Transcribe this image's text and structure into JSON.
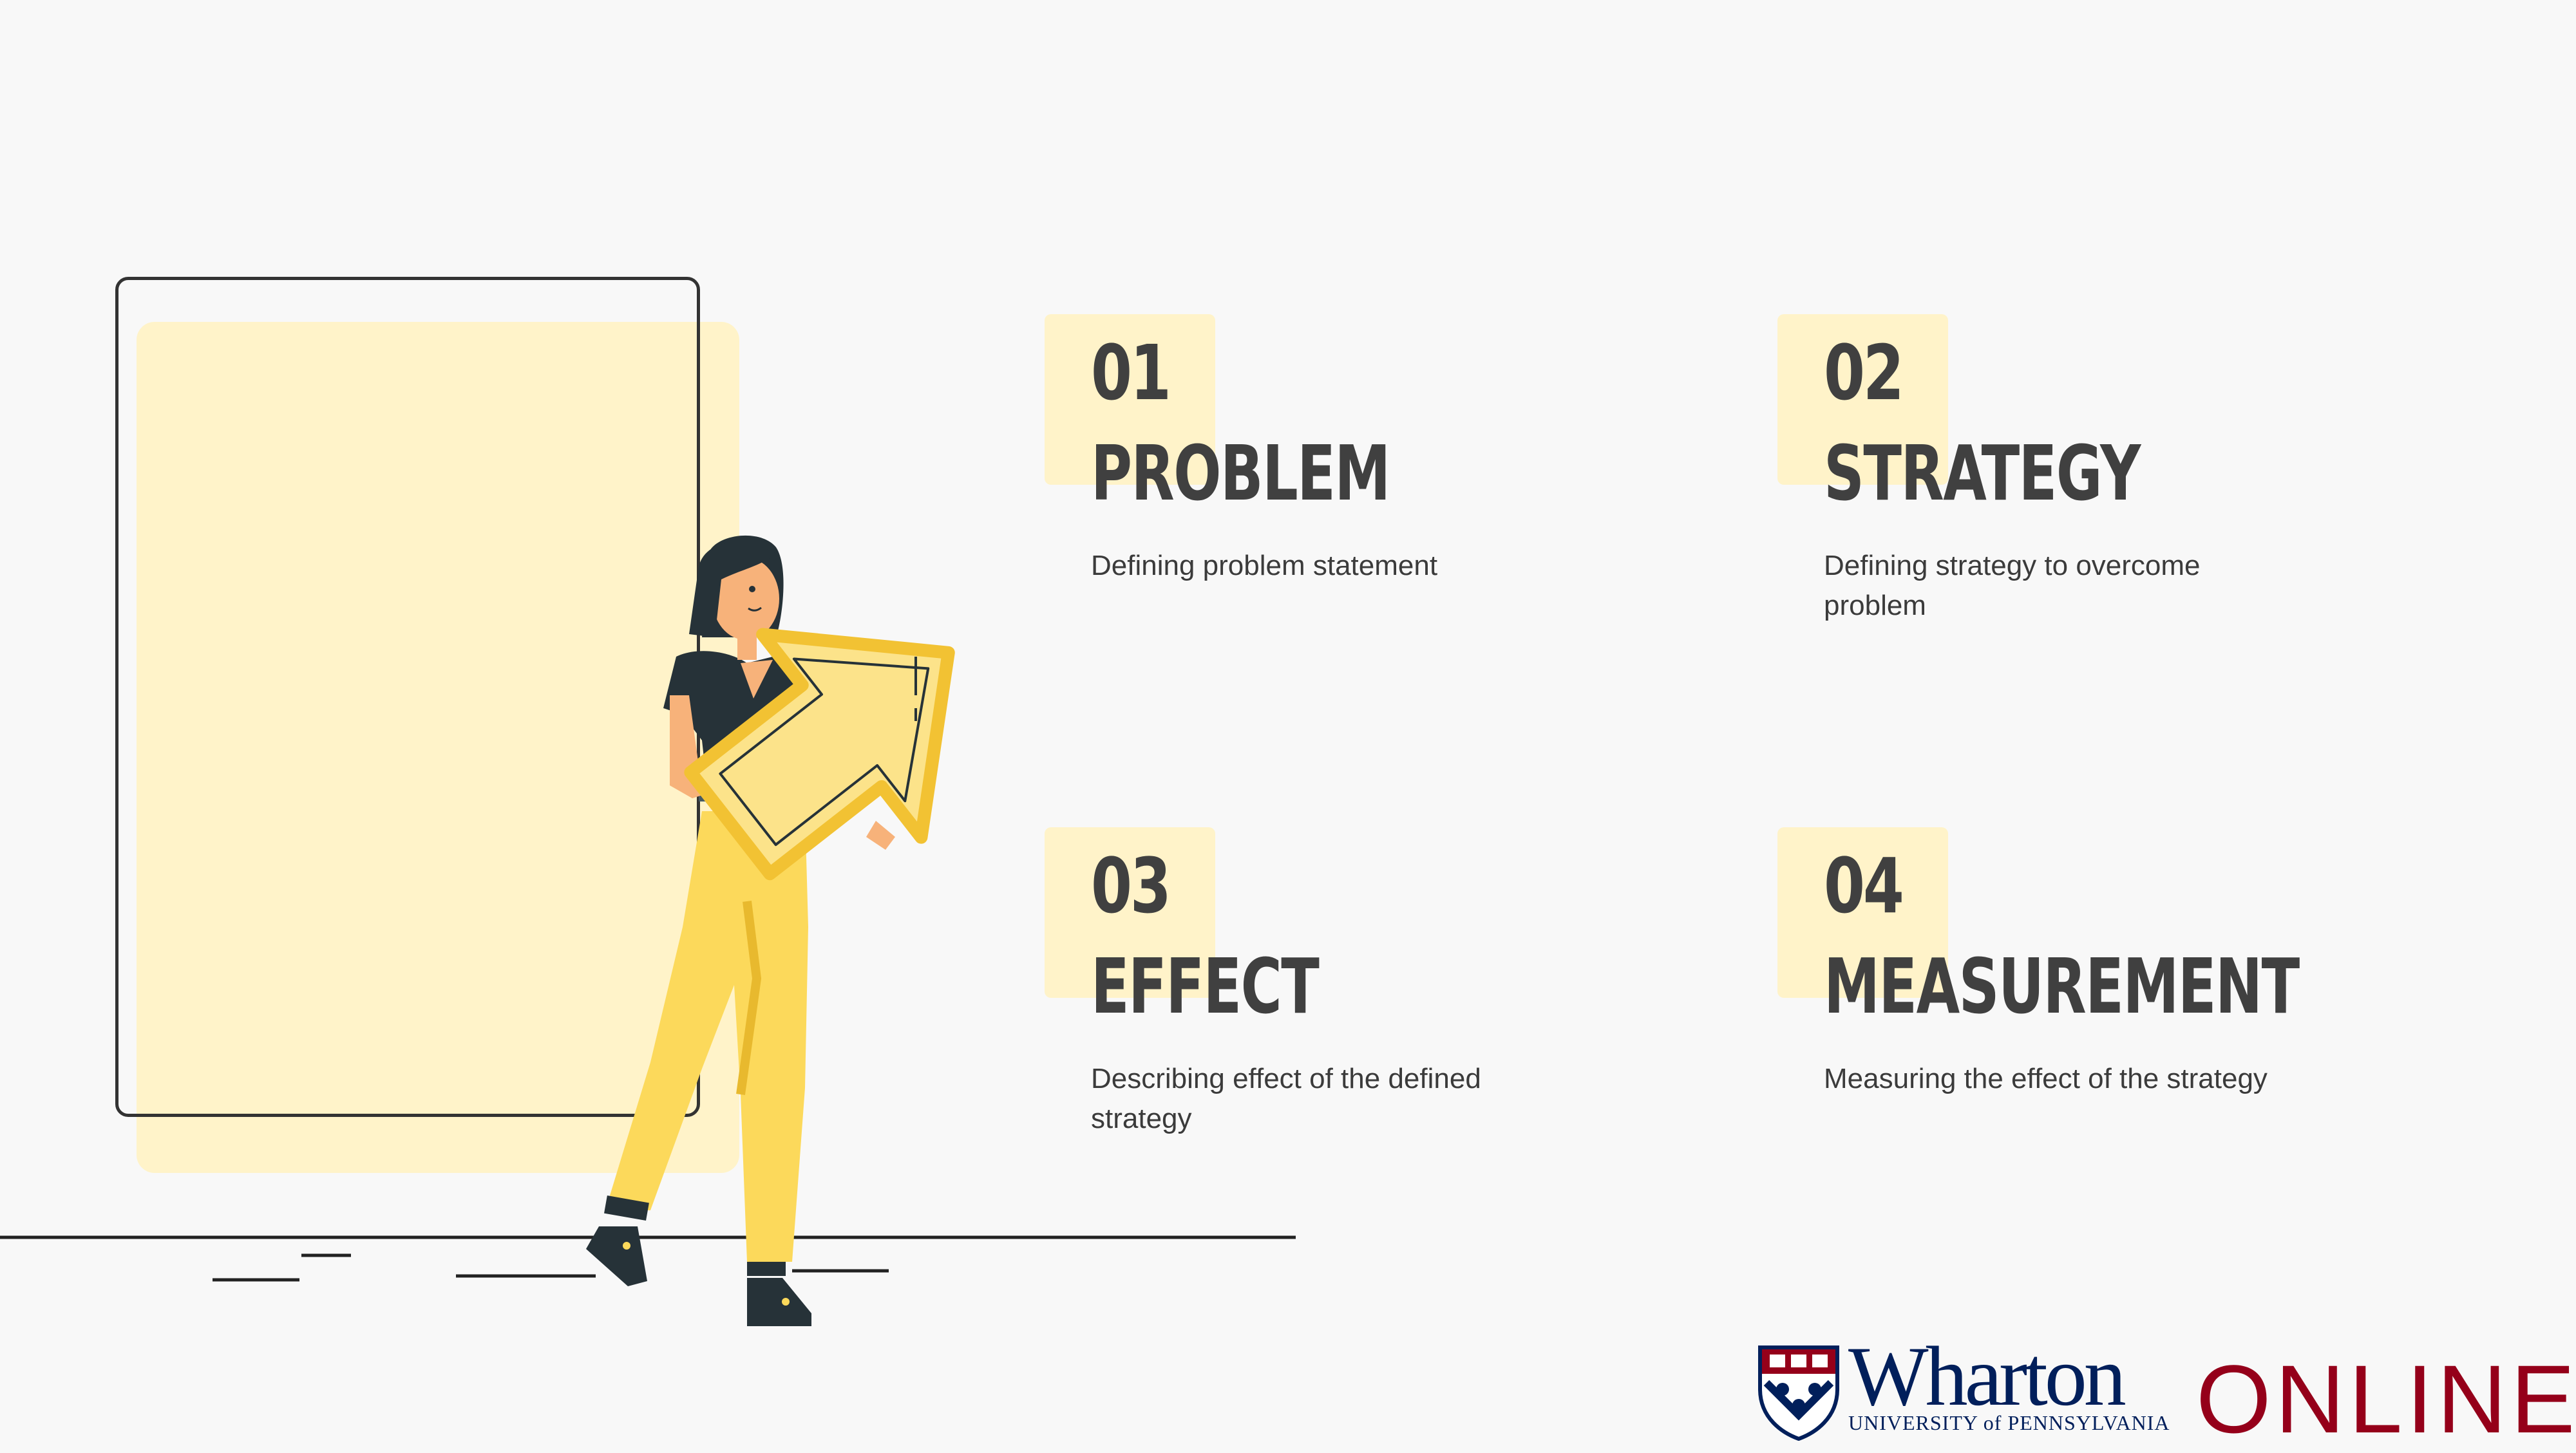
{
  "items": [
    {
      "number": "01",
      "title": "PROBLEM",
      "description": "Defining problem statement"
    },
    {
      "number": "02",
      "title": "STRATEGY",
      "description": "Defining strategy to overcome problem"
    },
    {
      "number": "03",
      "title": "EFFECT",
      "description": "Describing effect of the defined strategy"
    },
    {
      "number": "04",
      "title": "MEASUREMENT",
      "description": "Measuring the effect of the strategy"
    }
  ],
  "logo": {
    "name": "Wharton",
    "subtitle": "UNIVERSITY of PENNSYLVANIA",
    "online": "ONLINE"
  },
  "colors": {
    "accent_light": "#fff3c9",
    "yellow": "#fcd95b",
    "text_dark": "#404040",
    "wharton_blue": "#011f5b",
    "penn_red": "#95001a"
  }
}
